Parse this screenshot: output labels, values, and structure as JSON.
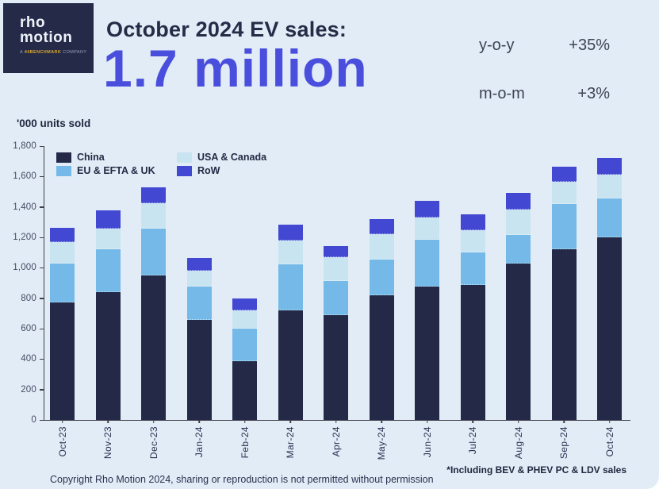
{
  "page": {
    "background": "#e2ecf6",
    "accent": "#4a4edd"
  },
  "header": {
    "logo": {
      "line1": "rho",
      "line2": "motion",
      "tagline_prefix": "A ",
      "tagline_mark": "44",
      "tagline_brand": "BENCHMARK",
      "tagline_suffix": " COMPANY"
    },
    "title": "October 2024 EV sales:",
    "headline_value": "1.7 million",
    "stats": [
      {
        "label": "y-o-y",
        "value": "+35%"
      },
      {
        "label": "m-o-m",
        "value": "+3%"
      }
    ]
  },
  "chart_data": {
    "type": "bar",
    "stacked": true,
    "title": "October 2024 EV sales: 1.7 million",
    "units_label": "'000 units sold",
    "xlabel": "",
    "ylabel": "'000 units sold",
    "categories": [
      "Oct-23",
      "Nov-23",
      "Dec-23",
      "Jan-24",
      "Feb-24",
      "Mar-24",
      "Apr-24",
      "May-24",
      "Jun-24",
      "Jul-24",
      "Aug-24",
      "Sep-24",
      "Oct-24"
    ],
    "series": [
      {
        "name": "China",
        "color": "#232946",
        "values": [
          770,
          840,
          950,
          660,
          385,
          720,
          690,
          820,
          875,
          885,
          1030,
          1120,
          1200
        ]
      },
      {
        "name": "EU & EFTA & UK",
        "color": "#74b9e7",
        "values": [
          260,
          280,
          305,
          215,
          215,
          305,
          225,
          235,
          310,
          215,
          185,
          300,
          255
        ]
      },
      {
        "name": "USA & Canada",
        "color": "#c9e4f1",
        "values": [
          140,
          135,
          170,
          105,
          120,
          155,
          155,
          165,
          145,
          145,
          170,
          145,
          155
        ]
      },
      {
        "name": "RoW",
        "color": "#4348d2",
        "values": [
          95,
          120,
          105,
          85,
          80,
          105,
          75,
          100,
          110,
          105,
          105,
          100,
          110
        ]
      }
    ],
    "totals": [
      1265,
      1375,
      1530,
      1065,
      800,
      1285,
      1145,
      1320,
      1440,
      1350,
      1490,
      1665,
      1720
    ],
    "ylim": [
      0,
      1800
    ],
    "yticks": [
      0,
      200,
      400,
      600,
      800,
      1000,
      1200,
      1400,
      1600,
      1800
    ],
    "ytick_labels": [
      "0",
      "200",
      "400",
      "600",
      "800",
      "1,000",
      "1,200",
      "1,400",
      "1,600",
      "1,800"
    ],
    "grid": false,
    "legend": {
      "position": "top-left-inside",
      "display_order": [
        "China",
        "USA & Canada",
        "EU & EFTA & UK",
        "RoW"
      ]
    }
  },
  "footer": {
    "copyright": "Copyright Rho Motion 2024, sharing or reproduction is not permitted without permission",
    "footnote": "*Including BEV & PHEV PC & LDV sales"
  }
}
